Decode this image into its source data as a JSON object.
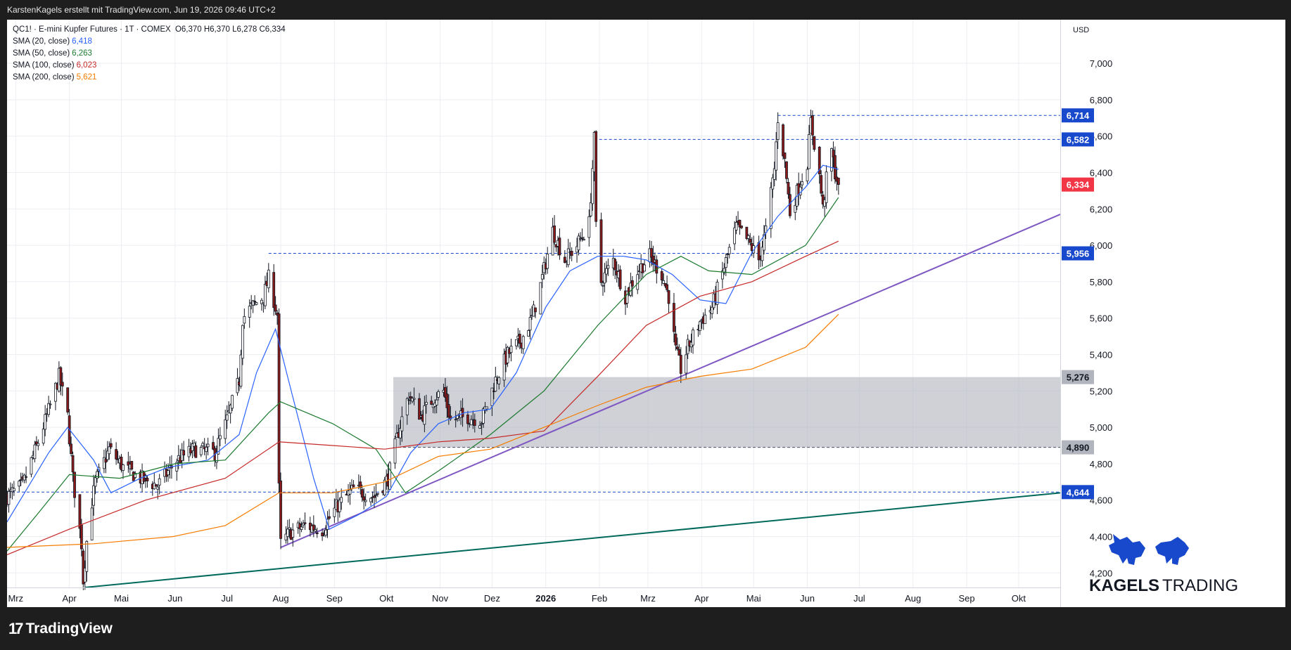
{
  "header": {
    "credit": "KarstenKagels erstellt mit TradingView.com, Jun 19, 2026 09:46 UTC+2"
  },
  "legend": {
    "symbol_line": "QC1! · E-mini Kupfer Futures · 1T · COMEX",
    "ohlc": "O6,370  H6,370  L6,278  C6,334",
    "sma": [
      {
        "label": "SMA (20, close)",
        "value": "6,418",
        "color": "#2962ff"
      },
      {
        "label": "SMA (50, close)",
        "value": "6,263",
        "color": "#1b7a2e"
      },
      {
        "label": "SMA (100, close)",
        "value": "6,023",
        "color": "#c62828"
      },
      {
        "label": "SMA (200, close)",
        "value": "5,621",
        "color": "#f57c00"
      }
    ]
  },
  "brand": {
    "kagels_line1": "KAGELS",
    "kagels_line2": "TRADING"
  },
  "footer": {
    "tradingview": "TradingView"
  },
  "chart_data": {
    "type": "candlestick",
    "currency": "USD",
    "ylim": [
      4.12,
      7.24
    ],
    "y_ticks": [
      "4,200",
      "4,400",
      "4,600",
      "4,800",
      "5,000",
      "5,200",
      "5,400",
      "5,600",
      "5,800",
      "6,000",
      "6,200",
      "6,400",
      "6,600",
      "6,800",
      "7,000"
    ],
    "x_ticks": [
      "Mrz",
      "Apr",
      "Mai",
      "Jun",
      "Jul",
      "Aug",
      "Sep",
      "Okt",
      "Nov",
      "Dez",
      "2026",
      "Feb",
      "Mrz",
      "Apr",
      "Mai",
      "Jun",
      "Jul",
      "Aug",
      "Sep",
      "Okt"
    ],
    "x_tick_dates": [
      "2025-03-01",
      "2025-04-01",
      "2025-05-01",
      "2025-06-01",
      "2025-07-01",
      "2025-08-01",
      "2025-09-01",
      "2025-10-01",
      "2025-11-01",
      "2025-12-01",
      "2026-01-01",
      "2026-02-01",
      "2026-03-01",
      "2026-04-01",
      "2026-05-01",
      "2026-06-01",
      "2026-07-01",
      "2026-08-01",
      "2026-09-01",
      "2026-10-01"
    ],
    "x_range": [
      "2025-02-24",
      "2026-10-25"
    ],
    "price_path": [
      [
        "2025-02-24",
        4.62
      ],
      [
        "2025-03-05",
        4.68
      ],
      [
        "2025-03-14",
        4.92
      ],
      [
        "2025-03-21",
        5.12
      ],
      [
        "2025-03-26",
        5.28
      ],
      [
        "2025-03-31",
        5.06
      ],
      [
        "2025-04-03",
        4.72
      ],
      [
        "2025-04-08",
        4.36
      ],
      [
        "2025-04-09",
        4.16
      ],
      [
        "2025-04-12",
        4.48
      ],
      [
        "2025-04-16",
        4.7
      ],
      [
        "2025-04-24",
        4.88
      ],
      [
        "2025-05-02",
        4.78
      ],
      [
        "2025-05-12",
        4.72
      ],
      [
        "2025-05-22",
        4.68
      ],
      [
        "2025-06-02",
        4.82
      ],
      [
        "2025-06-12",
        4.88
      ],
      [
        "2025-06-24",
        4.86
      ],
      [
        "2025-07-01",
        5.04
      ],
      [
        "2025-07-08",
        5.26
      ],
      [
        "2025-07-10",
        5.6
      ],
      [
        "2025-07-15",
        5.66
      ],
      [
        "2025-07-22",
        5.72
      ],
      [
        "2025-07-25",
        5.82
      ],
      [
        "2025-07-30",
        5.62
      ],
      [
        "2025-07-31",
        4.66
      ],
      [
        "2025-08-01",
        4.36
      ],
      [
        "2025-08-06",
        4.42
      ],
      [
        "2025-08-15",
        4.46
      ],
      [
        "2025-08-25",
        4.44
      ],
      [
        "2025-09-02",
        4.56
      ],
      [
        "2025-09-12",
        4.66
      ],
      [
        "2025-09-24",
        4.62
      ],
      [
        "2025-10-02",
        4.72
      ],
      [
        "2025-10-08",
        4.98
      ],
      [
        "2025-10-14",
        5.18
      ],
      [
        "2025-10-21",
        5.06
      ],
      [
        "2025-10-28",
        5.16
      ],
      [
        "2025-11-03",
        5.2
      ],
      [
        "2025-11-07",
        5.04
      ],
      [
        "2025-11-17",
        5.06
      ],
      [
        "2025-11-25",
        5.04
      ],
      [
        "2025-12-03",
        5.26
      ],
      [
        "2025-12-10",
        5.4
      ],
      [
        "2025-12-18",
        5.48
      ],
      [
        "2025-12-24",
        5.6
      ],
      [
        "2025-12-29",
        5.78
      ],
      [
        "2026-01-05",
        6.08
      ],
      [
        "2026-01-12",
        5.92
      ],
      [
        "2026-01-19",
        6.0
      ],
      [
        "2026-01-26",
        6.12
      ],
      [
        "2026-01-29",
        6.58
      ],
      [
        "2026-01-30",
        6.1
      ],
      [
        "2026-02-02",
        5.8
      ],
      [
        "2026-02-09",
        5.92
      ],
      [
        "2026-02-16",
        5.72
      ],
      [
        "2026-02-23",
        5.86
      ],
      [
        "2026-03-02",
        5.94
      ],
      [
        "2026-03-09",
        5.84
      ],
      [
        "2026-03-13",
        5.72
      ],
      [
        "2026-03-17",
        5.42
      ],
      [
        "2026-03-20",
        5.32
      ],
      [
        "2026-03-24",
        5.44
      ],
      [
        "2026-03-31",
        5.58
      ],
      [
        "2026-04-07",
        5.66
      ],
      [
        "2026-04-14",
        5.88
      ],
      [
        "2026-04-21",
        6.1
      ],
      [
        "2026-04-28",
        6.02
      ],
      [
        "2026-05-04",
        5.92
      ],
      [
        "2026-05-08",
        6.08
      ],
      [
        "2026-05-13",
        6.42
      ],
      [
        "2026-05-15",
        6.7
      ],
      [
        "2026-05-19",
        6.46
      ],
      [
        "2026-05-22",
        6.18
      ],
      [
        "2026-05-27",
        6.32
      ],
      [
        "2026-06-01",
        6.46
      ],
      [
        "2026-06-03",
        6.68
      ],
      [
        "2026-06-08",
        6.38
      ],
      [
        "2026-06-10",
        6.2
      ],
      [
        "2026-06-12",
        6.36
      ],
      [
        "2026-06-15",
        6.52
      ],
      [
        "2026-06-17",
        6.4
      ],
      [
        "2026-06-19",
        6.334
      ]
    ],
    "last_bar": {
      "open": 6.37,
      "high": 6.37,
      "low": 6.278,
      "close": 6.334
    },
    "sma": [
      {
        "name": "SMA (20, close)",
        "color": "#2962ff",
        "points": [
          [
            "2025-02-24",
            4.48
          ],
          [
            "2025-03-20",
            4.86
          ],
          [
            "2025-03-31",
            5.0
          ],
          [
            "2025-04-15",
            4.82
          ],
          [
            "2025-04-25",
            4.64
          ],
          [
            "2025-05-12",
            4.72
          ],
          [
            "2025-05-28",
            4.78
          ],
          [
            "2025-06-20",
            4.82
          ],
          [
            "2025-07-08",
            4.96
          ],
          [
            "2025-07-18",
            5.3
          ],
          [
            "2025-07-29",
            5.54
          ],
          [
            "2025-08-06",
            5.24
          ],
          [
            "2025-08-20",
            4.72
          ],
          [
            "2025-08-29",
            4.44
          ],
          [
            "2025-09-15",
            4.52
          ],
          [
            "2025-10-01",
            4.62
          ],
          [
            "2025-10-15",
            4.86
          ],
          [
            "2025-10-31",
            5.02
          ],
          [
            "2025-11-15",
            5.08
          ],
          [
            "2025-11-30",
            5.1
          ],
          [
            "2025-12-15",
            5.3
          ],
          [
            "2026-01-01",
            5.66
          ],
          [
            "2026-01-15",
            5.86
          ],
          [
            "2026-01-31",
            5.94
          ],
          [
            "2026-02-15",
            5.94
          ],
          [
            "2026-02-28",
            5.92
          ],
          [
            "2026-03-15",
            5.84
          ],
          [
            "2026-03-31",
            5.7
          ],
          [
            "2026-04-15",
            5.68
          ],
          [
            "2026-04-30",
            5.96
          ],
          [
            "2026-05-15",
            6.16
          ],
          [
            "2026-05-31",
            6.32
          ],
          [
            "2026-06-10",
            6.44
          ],
          [
            "2026-06-19",
            6.418
          ]
        ]
      },
      {
        "name": "SMA (50, close)",
        "color": "#1b7a2e",
        "points": [
          [
            "2025-02-24",
            4.32
          ],
          [
            "2025-03-15",
            4.54
          ],
          [
            "2025-04-01",
            4.74
          ],
          [
            "2025-04-30",
            4.72
          ],
          [
            "2025-06-01",
            4.8
          ],
          [
            "2025-06-30",
            4.82
          ],
          [
            "2025-07-25",
            5.08
          ],
          [
            "2025-08-01",
            5.14
          ],
          [
            "2025-08-31",
            5.02
          ],
          [
            "2025-09-25",
            4.88
          ],
          [
            "2025-10-12",
            4.64
          ],
          [
            "2025-10-31",
            4.76
          ],
          [
            "2025-11-30",
            4.96
          ],
          [
            "2025-12-31",
            5.2
          ],
          [
            "2026-01-31",
            5.56
          ],
          [
            "2026-02-28",
            5.84
          ],
          [
            "2026-03-20",
            5.94
          ],
          [
            "2026-04-05",
            5.86
          ],
          [
            "2026-04-30",
            5.84
          ],
          [
            "2026-05-31",
            6.0
          ],
          [
            "2026-06-19",
            6.263
          ]
        ]
      },
      {
        "name": "SMA (100, close)",
        "color": "#c62828",
        "points": [
          [
            "2025-02-24",
            4.3
          ],
          [
            "2025-04-01",
            4.44
          ],
          [
            "2025-05-15",
            4.6
          ],
          [
            "2025-06-30",
            4.72
          ],
          [
            "2025-07-31",
            4.92
          ],
          [
            "2025-08-31",
            4.9
          ],
          [
            "2025-09-30",
            4.88
          ],
          [
            "2025-10-31",
            4.92
          ],
          [
            "2025-11-30",
            4.94
          ],
          [
            "2025-12-31",
            4.98
          ],
          [
            "2026-01-31",
            5.28
          ],
          [
            "2026-02-28",
            5.56
          ],
          [
            "2026-03-31",
            5.72
          ],
          [
            "2026-04-30",
            5.8
          ],
          [
            "2026-05-31",
            5.94
          ],
          [
            "2026-06-19",
            6.023
          ]
        ]
      },
      {
        "name": "SMA (200, close)",
        "color": "#f57c00",
        "points": [
          [
            "2025-02-24",
            4.34
          ],
          [
            "2025-04-15",
            4.36
          ],
          [
            "2025-05-31",
            4.4
          ],
          [
            "2025-06-30",
            4.46
          ],
          [
            "2025-07-31",
            4.64
          ],
          [
            "2025-08-31",
            4.64
          ],
          [
            "2025-09-30",
            4.7
          ],
          [
            "2025-10-31",
            4.84
          ],
          [
            "2025-11-30",
            4.88
          ],
          [
            "2025-12-31",
            5.0
          ],
          [
            "2026-01-31",
            5.12
          ],
          [
            "2026-02-28",
            5.22
          ],
          [
            "2026-03-31",
            5.28
          ],
          [
            "2026-04-30",
            5.32
          ],
          [
            "2026-05-31",
            5.44
          ],
          [
            "2026-06-19",
            5.621
          ]
        ]
      }
    ],
    "horizontal_levels": [
      {
        "label": "6,714",
        "value": 6.714,
        "from": "2026-05-15",
        "bg": "#1848cc"
      },
      {
        "label": "6,582",
        "value": 6.582,
        "from": "2026-01-29",
        "bg": "#1848cc"
      },
      {
        "label": "5,956",
        "value": 5.956,
        "from": "2025-07-25",
        "bg": "#1848cc"
      },
      {
        "label": "4,644",
        "value": 4.644,
        "from": "2025-02-24",
        "bg": "#1848cc"
      }
    ],
    "last_price_label": {
      "label": "6,334",
      "value": 6.334,
      "bg": "#f23645"
    },
    "zone": {
      "from": "2025-10-05",
      "top": 5.276,
      "bottom": 4.89,
      "top_label": "5,276",
      "bottom_label": "4,890",
      "color": "#b2b5be"
    },
    "trendlines": [
      {
        "color": "#7e57c2",
        "from": [
          "2025-08-01",
          4.34
        ],
        "to": [
          "2026-10-25",
          6.17
        ]
      },
      {
        "color": "#00695c",
        "from": [
          "2025-04-10",
          4.12
        ],
        "to": [
          "2026-10-25",
          4.64
        ]
      }
    ]
  }
}
